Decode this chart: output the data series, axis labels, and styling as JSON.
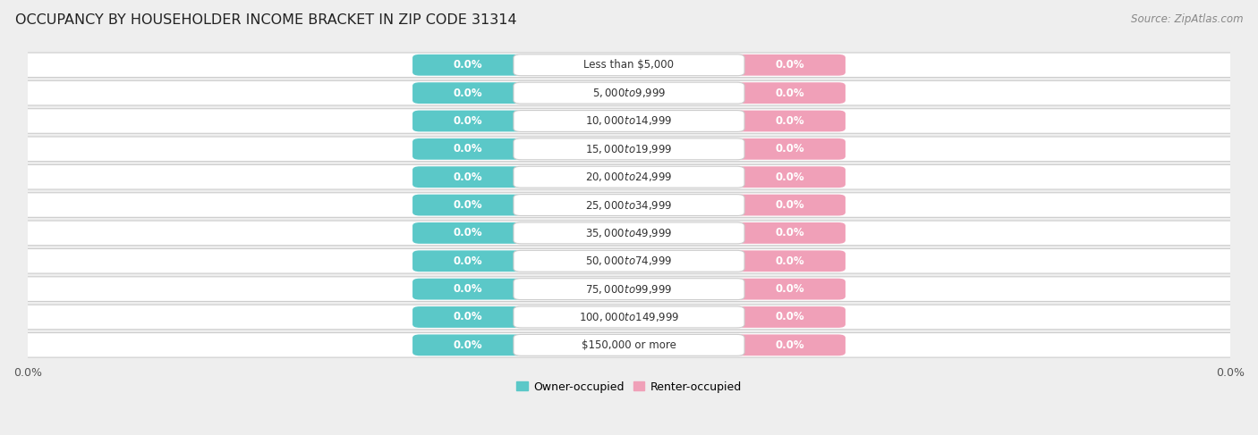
{
  "title": "OCCUPANCY BY HOUSEHOLDER INCOME BRACKET IN ZIP CODE 31314",
  "source": "Source: ZipAtlas.com",
  "categories": [
    "Less than $5,000",
    "$5,000 to $9,999",
    "$10,000 to $14,999",
    "$15,000 to $19,999",
    "$20,000 to $24,999",
    "$25,000 to $34,999",
    "$35,000 to $49,999",
    "$50,000 to $74,999",
    "$75,000 to $99,999",
    "$100,000 to $149,999",
    "$150,000 or more"
  ],
  "owner_values": [
    0.0,
    0.0,
    0.0,
    0.0,
    0.0,
    0.0,
    0.0,
    0.0,
    0.0,
    0.0,
    0.0
  ],
  "renter_values": [
    0.0,
    0.0,
    0.0,
    0.0,
    0.0,
    0.0,
    0.0,
    0.0,
    0.0,
    0.0,
    0.0
  ],
  "owner_color": "#5bc8c8",
  "renter_color": "#f0a0b8",
  "owner_label": "Owner-occupied",
  "renter_label": "Renter-occupied",
  "background_color": "#eeeeee",
  "row_color": "#ffffff",
  "row_edge_color": "#cccccc",
  "title_fontsize": 11.5,
  "tick_fontsize": 9,
  "source_fontsize": 8.5
}
